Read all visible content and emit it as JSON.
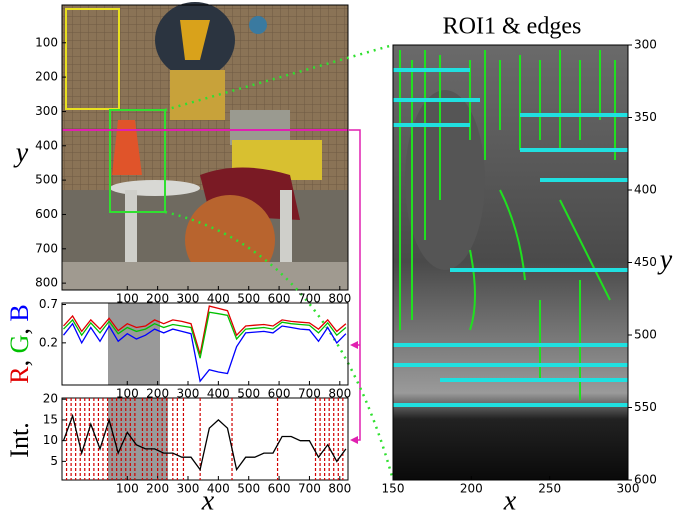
{
  "chart_data": [
    {
      "type": "image",
      "xlim": [
        -115,
        827
      ],
      "ylim": [
        -10,
        820
      ],
      "y_inverted": true,
      "xticks": [
        100,
        200,
        300,
        400,
        500,
        600,
        700,
        800
      ],
      "yticks": [
        100,
        200,
        300,
        400,
        500,
        600,
        700,
        800
      ],
      "ylabel": "y"
    },
    {
      "type": "line",
      "xlim": [
        -115,
        827
      ],
      "ylim": [
        -0.35,
        0.72
      ],
      "xticks": [
        100,
        200,
        300,
        400,
        500,
        600,
        700,
        800
      ],
      "yticks": [
        0.2,
        0.7
      ],
      "ylabel_parts": [
        "R",
        ", ",
        "G",
        ", ",
        "B"
      ],
      "ylabel_colors": [
        "#e00000",
        "#000000",
        "#00c000",
        "#000000",
        "#0000ff"
      ],
      "x": [
        -110,
        -80,
        -50,
        -20,
        10,
        40,
        70,
        100,
        130,
        160,
        190,
        220,
        250,
        280,
        310,
        340,
        370,
        400,
        430,
        460,
        490,
        520,
        550,
        580,
        610,
        640,
        670,
        700,
        730,
        760,
        790,
        820
      ],
      "series": [
        {
          "color": "#e00000",
          "values": [
            0.42,
            0.55,
            0.35,
            0.5,
            0.38,
            0.52,
            0.36,
            0.45,
            0.4,
            0.42,
            0.5,
            0.45,
            0.5,
            0.48,
            0.45,
            0.05,
            0.68,
            0.65,
            0.62,
            0.3,
            0.42,
            0.43,
            0.44,
            0.42,
            0.5,
            0.48,
            0.47,
            0.46,
            0.38,
            0.5,
            0.35,
            0.45
          ]
        },
        {
          "color": "#00c000",
          "values": [
            0.38,
            0.5,
            0.3,
            0.46,
            0.33,
            0.48,
            0.32,
            0.4,
            0.35,
            0.38,
            0.45,
            0.4,
            0.44,
            0.42,
            0.4,
            0.0,
            0.6,
            0.58,
            0.56,
            0.25,
            0.38,
            0.39,
            0.4,
            0.38,
            0.47,
            0.45,
            0.44,
            0.43,
            0.33,
            0.46,
            0.3,
            0.4
          ]
        },
        {
          "color": "#0000ff",
          "values": [
            0.3,
            0.45,
            0.2,
            0.4,
            0.22,
            0.42,
            0.22,
            0.32,
            0.25,
            0.3,
            0.38,
            0.33,
            0.38,
            0.35,
            0.32,
            -0.3,
            -0.15,
            -0.18,
            -0.2,
            0.15,
            0.33,
            0.34,
            0.35,
            0.33,
            0.42,
            0.4,
            0.38,
            0.37,
            0.22,
            0.4,
            0.2,
            0.32
          ]
        }
      ]
    },
    {
      "type": "line",
      "xlim": [
        -115,
        827
      ],
      "ylim": [
        0.5,
        20.3
      ],
      "xticks": [
        100,
        200,
        300,
        400,
        500,
        600,
        700,
        800
      ],
      "yticks": [
        5,
        10,
        15,
        20
      ],
      "xlabel": "x",
      "ylabel": "Int.",
      "x": [
        -110,
        -80,
        -50,
        -20,
        10,
        40,
        70,
        100,
        130,
        160,
        190,
        220,
        250,
        280,
        310,
        340,
        370,
        400,
        430,
        460,
        490,
        520,
        550,
        580,
        610,
        640,
        670,
        700,
        730,
        760,
        790,
        820
      ],
      "series": [
        {
          "color": "#000000",
          "values": [
            10,
            16,
            7,
            14,
            8,
            15,
            7,
            12,
            9,
            8,
            8,
            7,
            7,
            6,
            6,
            3,
            13,
            15,
            13,
            3,
            6,
            6,
            7,
            7,
            11,
            11,
            10,
            10,
            6,
            9,
            5,
            8
          ]
        }
      ],
      "edges_x": [
        -100,
        -85,
        -70,
        -55,
        -40,
        -25,
        -10,
        5,
        20,
        35,
        50,
        65,
        80,
        95,
        110,
        125,
        150,
        165,
        180,
        200,
        215,
        230,
        250,
        265,
        285,
        340,
        445,
        595,
        720,
        735,
        750,
        765,
        780,
        795,
        810
      ],
      "edge_color": "#d00000"
    },
    {
      "type": "image",
      "title": "ROI1 & edges",
      "xlim": [
        150,
        300
      ],
      "ylim": [
        300,
        600
      ],
      "y_inverted": true,
      "xticks": [
        150,
        200,
        250,
        300
      ],
      "yticks": [
        300,
        350,
        400,
        450,
        500,
        550,
        600
      ],
      "xlabel": "x",
      "ylabel": "y"
    }
  ]
}
